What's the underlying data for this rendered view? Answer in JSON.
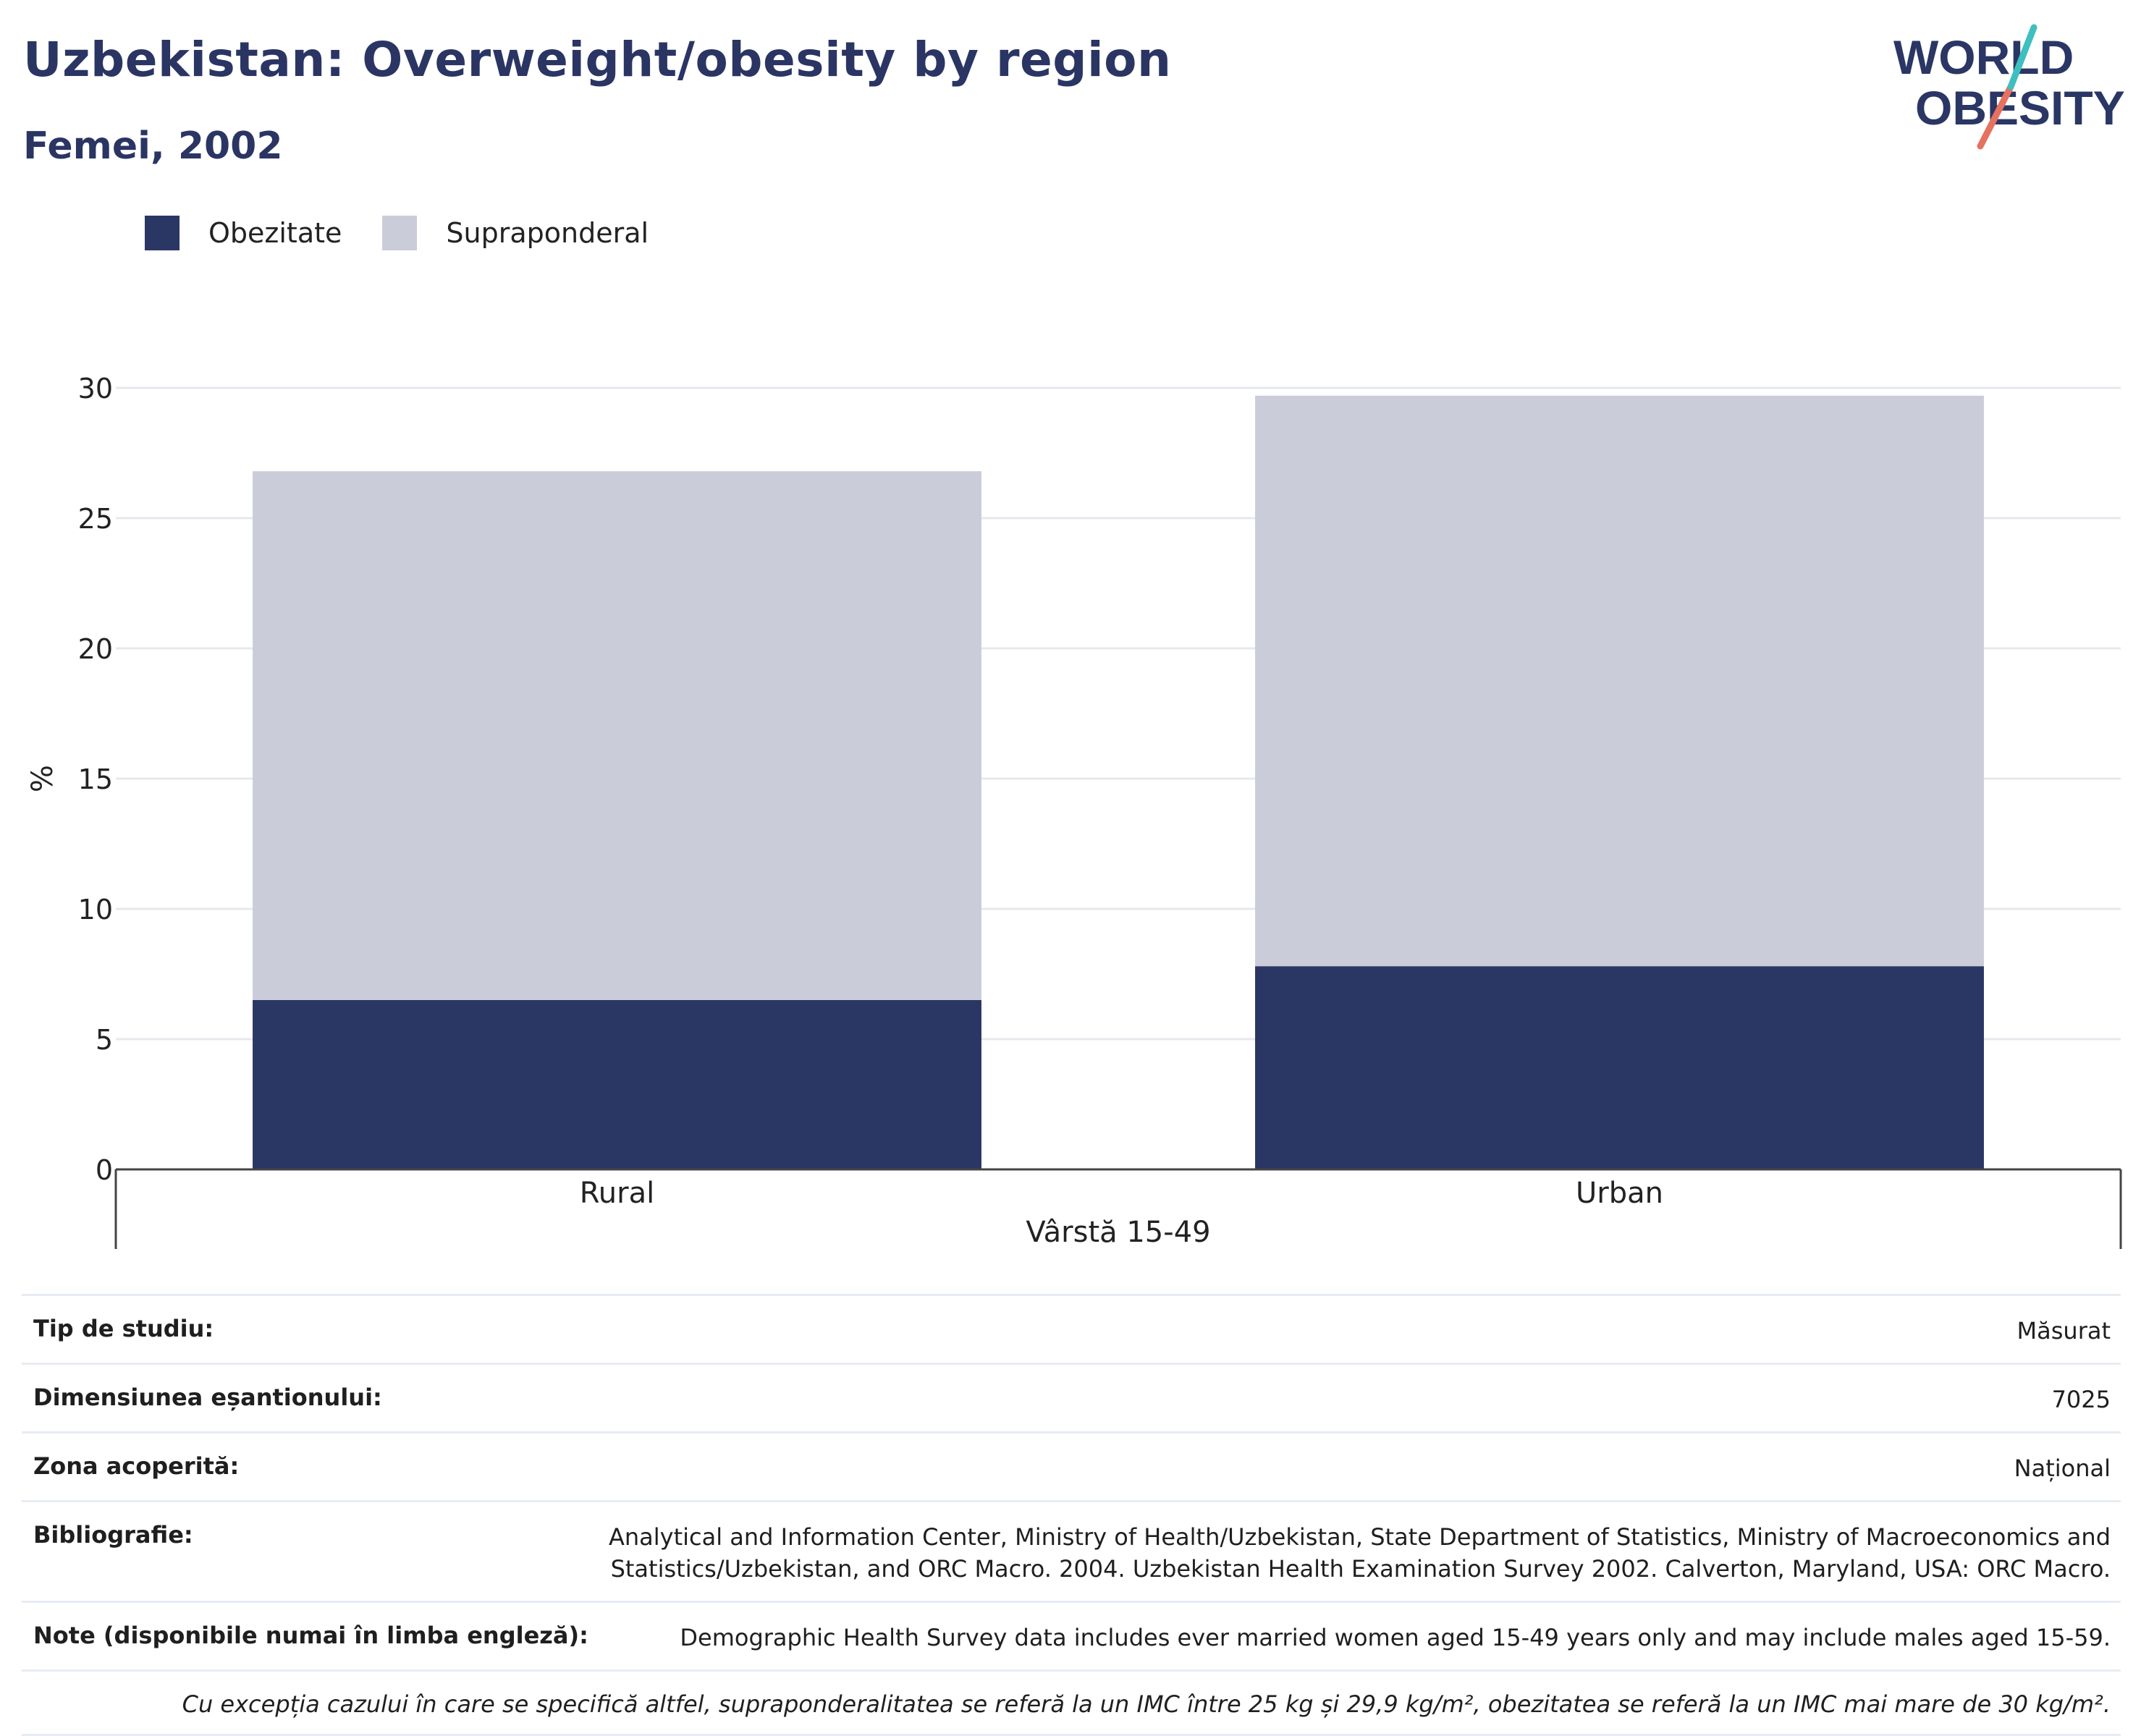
{
  "header": {
    "title": "Uzbekistan: Overweight/obesity by region",
    "subtitle": "Femei, 2002"
  },
  "logo": {
    "line1": "WORLD",
    "line2": "OBESITY"
  },
  "legend": [
    {
      "label": "Obezitate",
      "color": "#2a3664"
    },
    {
      "label": "Supraponderal",
      "color": "#cacdd9"
    }
  ],
  "chart_data": {
    "type": "bar",
    "stacked": true,
    "categories": [
      "Rural",
      "Urban"
    ],
    "series": [
      {
        "name": "Obezitate",
        "values": [
          6.5,
          7.8
        ],
        "color": "#2a3664"
      },
      {
        "name": "Supraponderal",
        "values": [
          20.3,
          21.9
        ],
        "color": "#cacdd9"
      }
    ],
    "xlabel": "Vârstă 15-49",
    "ylabel": "%",
    "ylim": [
      0,
      30
    ],
    "yticks": [
      0,
      5,
      10,
      15,
      20,
      25,
      30
    ],
    "grid": true
  },
  "details": [
    {
      "key": "Tip de studiu:",
      "value": "Măsurat"
    },
    {
      "key": "Dimensiunea eșantionului:",
      "value": "7025"
    },
    {
      "key": "Zona acoperită:",
      "value": "Național"
    },
    {
      "key": "Bibliografie:",
      "value": "Analytical and Information Center, Ministry of Health/Uzbekistan, State Department of Statistics, Ministry of Macroeconomics and Statistics/Uzbekistan, and ORC Macro. 2004. Uzbekistan Health Examination Survey 2002. Calverton, Maryland, USA: ORC Macro."
    },
    {
      "key": "Note (disponibile numai în limba engleză):",
      "value": "Demographic Health Survey data includes ever married women aged 15-49 years only and may include males aged 15-59."
    }
  ],
  "footnote": "Cu excepția cazului în care se specifică altfel, supraponderalitatea se referă la un IMC între 25 kg și 29,9 kg/m², obezitatea se referă la un IMC mai mare de 30 kg/m²."
}
